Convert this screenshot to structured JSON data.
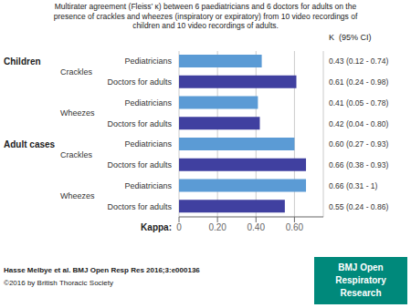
{
  "chart_data": {
    "type": "bar",
    "orientation": "horizontal",
    "title": "Multirater agreement (Fleiss’ κ) between 6 paediatricians and 6 doctors for adults on the\npresence of crackles and wheezes (inspiratory or expiratory) from 10 video recordings of\nchildren and 10 video recordings of adults.",
    "categories": [
      "Pediatricians",
      "Doctors for adults",
      "Pediatricians",
      "Doctors for adults",
      "Pediatricians",
      "Doctors for adults",
      "Pediatricians",
      "Doctors for adults"
    ],
    "values": [
      0.43,
      0.61,
      0.41,
      0.42,
      0.6,
      0.66,
      0.66,
      0.55
    ],
    "colors": [
      "#5b9bd5",
      "#4040a0",
      "#5b9bd5",
      "#4040a0",
      "#5b9bd5",
      "#4040a0",
      "#5b9bd5",
      "#4040a0"
    ],
    "data_labels": true,
    "value_labels": [
      "0.43  (0.12 - 0.74)",
      "0.61  (0.24 - 0.98)",
      "0.41  (0.05 - 0.78)",
      "0.42  (0.04 - 0.80)",
      "0.60  (0.27 - 0.93)",
      "0.66  (0.38 - 0.93)",
      "0.66  (0.31 - 1)",
      "0.55  (0.24 - 0.86)"
    ],
    "value_header": "K  (95% CI)",
    "section_labels": [
      "Children",
      null,
      null,
      null,
      "Adult cases",
      null,
      null,
      null
    ],
    "subsection_labels": [
      "Crackles",
      null,
      "Wheezes",
      null,
      "Crackles",
      null,
      "Wheezes",
      null
    ],
    "xlabel": "Kappa:",
    "xlim": [
      0,
      0.75
    ],
    "xticks": [
      0,
      {
        "value": 0.2,
        "label": "0.20"
      },
      {
        "value": 0.4,
        "label": "0.40"
      },
      {
        "value": 0.6,
        "label": "0.60"
      }
    ],
    "grid": true,
    "annotations": {
      "footer": [
        "Hasse Melbye et al. BMJ Open Resp Res 2016;3:e000136",
        "©2016 by British Thoracic Society"
      ],
      "logo": {
        "lines": [
          "BMJ Open",
          "Respiratory",
          "Research"
        ],
        "color": "#00897b"
      }
    }
  }
}
